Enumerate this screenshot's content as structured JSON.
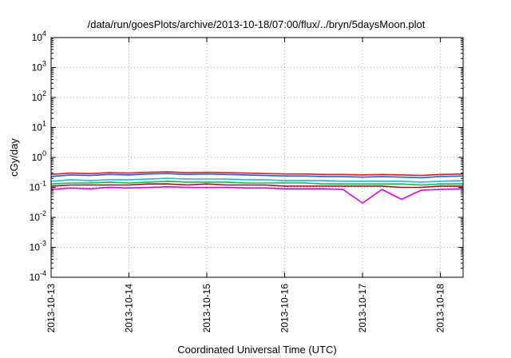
{
  "chart_data": {
    "type": "line",
    "title": "/data/run/goesPlots/archive/2013-10-18/07:00/flux/../bryn/5daysMoon.plot",
    "xlabel": "Coordinated Universal Time (UTC)",
    "ylabel": "cGy/day",
    "yscale": "log",
    "grid": true,
    "xlim": [
      "2013-10-13T00:00",
      "2013-10-18T07:00"
    ],
    "ylim": [
      0.0001,
      10000
    ],
    "x_ticks": [
      "2013-10-13",
      "2013-10-14",
      "2013-10-15",
      "2013-10-16",
      "2013-10-17",
      "2013-10-18"
    ],
    "y_ticks": [
      {
        "base": "10",
        "exp": "4",
        "value": 10000
      },
      {
        "base": "10",
        "exp": "3",
        "value": 1000
      },
      {
        "base": "10",
        "exp": "2",
        "value": 100
      },
      {
        "base": "10",
        "exp": "1",
        "value": 10
      },
      {
        "base": "10",
        "exp": "0",
        "value": 1
      },
      {
        "base": "10",
        "exp": "-1",
        "value": 0.1
      },
      {
        "base": "10",
        "exp": "-2",
        "value": 0.01
      },
      {
        "base": "10",
        "exp": "-3",
        "value": 0.001
      },
      {
        "base": "10",
        "exp": "-4",
        "value": 0.0001
      }
    ],
    "x": [
      "2013-10-13T00:00",
      "2013-10-13T06:00",
      "2013-10-13T12:00",
      "2013-10-13T18:00",
      "2013-10-14T00:00",
      "2013-10-14T06:00",
      "2013-10-14T12:00",
      "2013-10-14T18:00",
      "2013-10-15T00:00",
      "2013-10-15T06:00",
      "2013-10-15T12:00",
      "2013-10-15T18:00",
      "2013-10-16T00:00",
      "2013-10-16T06:00",
      "2013-10-16T12:00",
      "2013-10-16T18:00",
      "2013-10-17T00:00",
      "2013-10-17T06:00",
      "2013-10-17T12:00",
      "2013-10-17T18:00",
      "2013-10-18T00:00",
      "2013-10-18T07:00"
    ],
    "series": [
      {
        "color": "#e41a1c",
        "values": [
          0.27,
          0.3,
          0.29,
          0.31,
          0.3,
          0.32,
          0.33,
          0.31,
          0.32,
          0.31,
          0.3,
          0.29,
          0.28,
          0.28,
          0.27,
          0.27,
          0.26,
          0.27,
          0.26,
          0.25,
          0.27,
          0.28
        ]
      },
      {
        "color": "#1f5fe0",
        "values": [
          0.23,
          0.26,
          0.25,
          0.27,
          0.26,
          0.28,
          0.29,
          0.27,
          0.28,
          0.27,
          0.26,
          0.25,
          0.24,
          0.24,
          0.23,
          0.23,
          0.22,
          0.23,
          0.22,
          0.21,
          0.23,
          0.24
        ]
      },
      {
        "color": "#00c8d8",
        "values": [
          0.16,
          0.18,
          0.17,
          0.18,
          0.18,
          0.19,
          0.2,
          0.19,
          0.19,
          0.19,
          0.18,
          0.18,
          0.17,
          0.17,
          0.17,
          0.16,
          0.16,
          0.16,
          0.16,
          0.15,
          0.16,
          0.17
        ]
      },
      {
        "color": "#20b050",
        "values": [
          0.13,
          0.14,
          0.14,
          0.15,
          0.14,
          0.15,
          0.16,
          0.15,
          0.15,
          0.15,
          0.14,
          0.14,
          0.14,
          0.14,
          0.13,
          0.13,
          0.13,
          0.13,
          0.13,
          0.12,
          0.13,
          0.13
        ]
      },
      {
        "color": "#8b1a1a",
        "values": [
          0.11,
          0.12,
          0.12,
          0.12,
          0.12,
          0.13,
          0.13,
          0.12,
          0.13,
          0.12,
          0.12,
          0.12,
          0.11,
          0.11,
          0.11,
          0.11,
          0.11,
          0.11,
          0.1,
          0.1,
          0.11,
          0.11
        ]
      },
      {
        "color": "#e400e4",
        "values": [
          0.085,
          0.095,
          0.09,
          0.1,
          0.095,
          0.1,
          0.105,
          0.1,
          0.1,
          0.1,
          0.095,
          0.095,
          0.09,
          0.09,
          0.09,
          0.085,
          0.03,
          0.085,
          0.04,
          0.08,
          0.085,
          0.09
        ]
      }
    ]
  }
}
